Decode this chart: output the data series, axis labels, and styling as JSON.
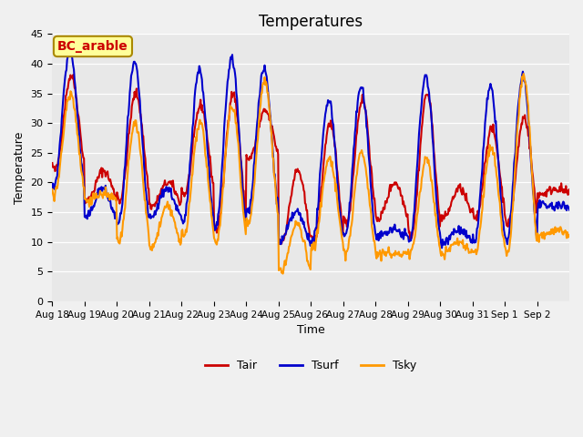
{
  "title": "Temperatures",
  "xlabel": "Time",
  "ylabel": "Temperature",
  "ylim": [
    0,
    45
  ],
  "yticks": [
    0,
    5,
    10,
    15,
    20,
    25,
    30,
    35,
    40,
    45
  ],
  "xtick_labels": [
    "Aug 18",
    "Aug 19",
    "Aug 20",
    "Aug 21",
    "Aug 22",
    "Aug 23",
    "Aug 24",
    "Aug 25",
    "Aug 26",
    "Aug 27",
    "Aug 28",
    "Aug 29",
    "Aug 30",
    "Aug 31",
    "Sep 1",
    "Sep 2"
  ],
  "legend_labels": [
    "Tair",
    "Tsurf",
    "Tsky"
  ],
  "annotation_text": "BC_arable",
  "annotation_color": "#cc0000",
  "annotation_bg": "#ffff99",
  "annotation_edge": "#aa8800",
  "bg_inner": "#e8e8e8",
  "bg_outer": "#f0f0f0",
  "line_colors": [
    "#cc0000",
    "#0000cc",
    "#ff9900"
  ],
  "line_width": 1.5,
  "n_days": 16,
  "tair_peaks": [
    38,
    22,
    35,
    20,
    33,
    35,
    32,
    22,
    30,
    34,
    20,
    35,
    19,
    29,
    31,
    19
  ],
  "tsurf_peaks": [
    42,
    19,
    40,
    19,
    39,
    41,
    39,
    15,
    34,
    36,
    12,
    38,
    12,
    36,
    38,
    16
  ],
  "tsky_peaks": [
    35,
    18,
    30,
    16,
    30,
    33,
    37,
    13,
    24,
    25,
    8,
    24,
    10,
    26,
    38,
    12
  ],
  "tair_troughs": [
    22,
    17,
    17,
    16,
    18,
    12,
    24,
    10,
    10,
    13,
    14,
    11,
    14,
    14,
    13,
    18
  ],
  "tsurf_troughs": [
    19,
    14,
    13,
    14,
    13,
    12,
    15,
    10,
    10,
    11,
    11,
    10,
    10,
    10,
    10,
    16
  ],
  "tsky_troughs": [
    18,
    17,
    10,
    9,
    11,
    10,
    13,
    5,
    9,
    8,
    8,
    8,
    8,
    8,
    8,
    11
  ]
}
